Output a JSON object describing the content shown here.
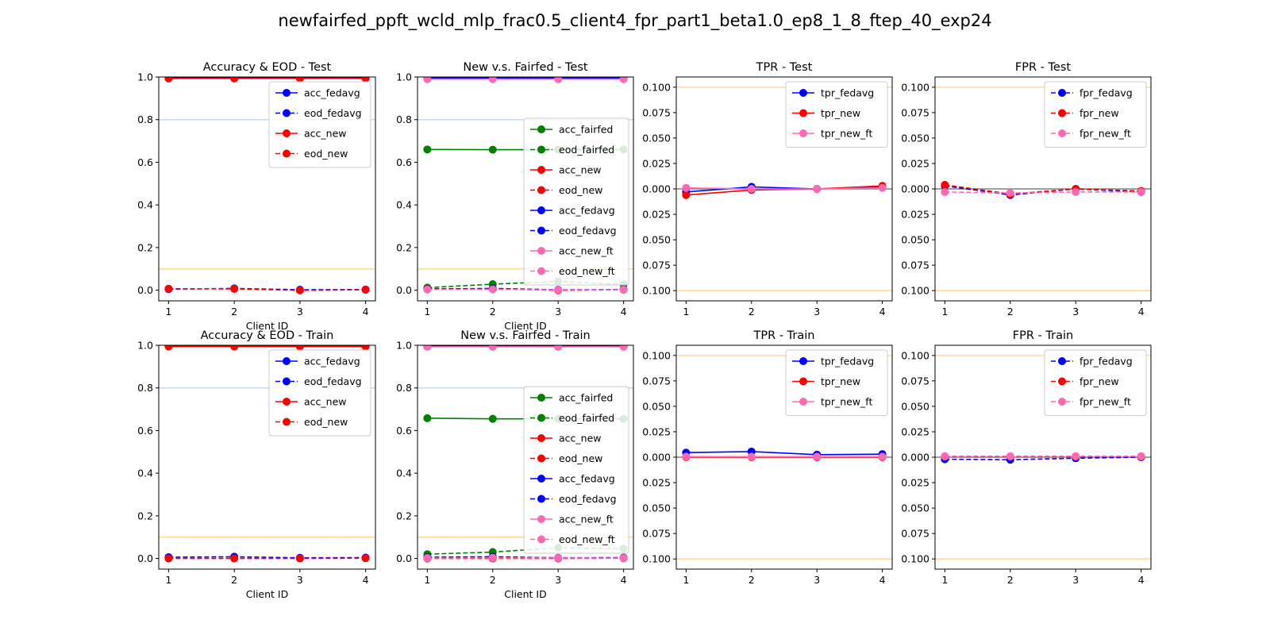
{
  "figure": {
    "suptitle": "newfairfed_ppft_wcld_mlp_frac0.5_client4_fpr_part1_beta1.0_ep8_1_8_ftep_40_exp24"
  },
  "colors": {
    "fedavg": "#0000ff",
    "new": "#ff0000",
    "fairfed": "#008000",
    "new_ft": "#ff69b4",
    "hline_blue": "#c6d9f0",
    "hline_orange": "#ffd89a",
    "hline_gray": "#808080"
  },
  "chart_data": [
    {
      "type": "line",
      "title": "Accuracy & EOD - Test",
      "xlabel": "Client ID",
      "ylabel": "",
      "x": [
        1,
        2,
        3,
        4
      ],
      "ylim": [
        -0.05,
        1.0
      ],
      "yticks": [
        "0.0",
        "0.2",
        "0.4",
        "0.6",
        "0.8",
        "1.0"
      ],
      "ytick_values": [
        0.0,
        0.2,
        0.4,
        0.6,
        0.8,
        1.0
      ],
      "hlines": [
        {
          "y": 0.8,
          "color": "hline_blue"
        },
        {
          "y": 0.1,
          "color": "hline_orange"
        }
      ],
      "legend_position": "upper-right",
      "series": [
        {
          "name": "acc_fedavg",
          "color": "fedavg",
          "dash": false,
          "values": [
            0.995,
            0.995,
            0.995,
            0.995
          ]
        },
        {
          "name": "eod_fedavg",
          "color": "fedavg",
          "dash": true,
          "values": [
            0.005,
            0.008,
            0.002,
            0.003
          ]
        },
        {
          "name": "acc_new",
          "color": "new",
          "dash": false,
          "values": [
            0.993,
            0.993,
            0.993,
            0.993
          ]
        },
        {
          "name": "eod_new",
          "color": "new",
          "dash": true,
          "values": [
            0.007,
            0.006,
            -0.001,
            0.002
          ]
        }
      ]
    },
    {
      "type": "line",
      "title": "New v.s. Fairfed - Test",
      "xlabel": "Client ID",
      "ylabel": "",
      "x": [
        1,
        2,
        3,
        4
      ],
      "ylim": [
        -0.05,
        1.0
      ],
      "yticks": [
        "0.0",
        "0.2",
        "0.4",
        "0.6",
        "0.8",
        "1.0"
      ],
      "ytick_values": [
        0.0,
        0.2,
        0.4,
        0.6,
        0.8,
        1.0
      ],
      "hlines": [
        {
          "y": 0.8,
          "color": "hline_blue"
        },
        {
          "y": 0.1,
          "color": "hline_orange"
        }
      ],
      "legend_position": "center-right",
      "series": [
        {
          "name": "acc_fairfed",
          "color": "fairfed",
          "dash": false,
          "values": [
            0.66,
            0.659,
            0.659,
            0.66
          ]
        },
        {
          "name": "eod_fairfed",
          "color": "fairfed",
          "dash": true,
          "values": [
            0.012,
            0.028,
            0.041,
            0.027
          ]
        },
        {
          "name": "acc_new",
          "color": "new",
          "dash": false,
          "values": [
            0.993,
            0.993,
            0.993,
            0.993
          ]
        },
        {
          "name": "eod_new",
          "color": "new",
          "dash": true,
          "values": [
            0.007,
            0.006,
            -0.001,
            0.002
          ]
        },
        {
          "name": "acc_fedavg",
          "color": "fedavg",
          "dash": false,
          "values": [
            0.995,
            0.995,
            0.995,
            0.995
          ]
        },
        {
          "name": "eod_fedavg",
          "color": "fedavg",
          "dash": true,
          "values": [
            0.005,
            0.008,
            0.002,
            0.003
          ]
        },
        {
          "name": "acc_new_ft",
          "color": "new_ft",
          "dash": false,
          "values": [
            0.99,
            0.99,
            0.99,
            0.99
          ]
        },
        {
          "name": "eod_new_ft",
          "color": "new_ft",
          "dash": true,
          "values": [
            0.003,
            0.004,
            0.001,
            0.002
          ]
        }
      ]
    },
    {
      "type": "line",
      "title": "TPR - Test",
      "xlabel": "",
      "ylabel": "",
      "x": [
        1,
        2,
        3,
        4
      ],
      "ylim": [
        -0.11,
        0.11
      ],
      "yticks": [
        "0.100",
        "0.075",
        "0.050",
        "0.025",
        "0.000",
        "0.025",
        "0.050",
        "0.075",
        "0.100"
      ],
      "ytick_values": [
        0.1,
        0.075,
        0.05,
        0.025,
        0.0,
        -0.025,
        -0.05,
        -0.075,
        -0.1
      ],
      "hlines": [
        {
          "y": 0.1,
          "color": "hline_orange"
        },
        {
          "y": -0.1,
          "color": "hline_orange"
        },
        {
          "y": 0.0,
          "color": "hline_gray"
        }
      ],
      "legend_position": "upper-right",
      "series": [
        {
          "name": "tpr_fedavg",
          "color": "fedavg",
          "dash": false,
          "values": [
            -0.003,
            0.002,
            0.0,
            0.002
          ]
        },
        {
          "name": "tpr_new",
          "color": "new",
          "dash": false,
          "values": [
            -0.006,
            -0.001,
            0.0,
            0.003
          ]
        },
        {
          "name": "tpr_new_ft",
          "color": "new_ft",
          "dash": false,
          "values": [
            0.001,
            0.0,
            0.0,
            0.001
          ]
        }
      ]
    },
    {
      "type": "line",
      "title": "FPR - Test",
      "xlabel": "",
      "ylabel": "",
      "x": [
        1,
        2,
        3,
        4
      ],
      "ylim": [
        -0.11,
        0.11
      ],
      "yticks": [
        "0.100",
        "0.075",
        "0.050",
        "0.025",
        "0.000",
        "0.025",
        "0.050",
        "0.075",
        "0.100"
      ],
      "ytick_values": [
        0.1,
        0.075,
        0.05,
        0.025,
        0.0,
        -0.025,
        -0.05,
        -0.075,
        -0.1
      ],
      "hlines": [
        {
          "y": 0.1,
          "color": "hline_orange"
        },
        {
          "y": -0.1,
          "color": "hline_orange"
        },
        {
          "y": 0.0,
          "color": "hline_gray"
        }
      ],
      "legend_position": "upper-right",
      "series": [
        {
          "name": "fpr_fedavg",
          "color": "fedavg",
          "dash": true,
          "values": [
            0.003,
            -0.006,
            0.0,
            -0.003
          ]
        },
        {
          "name": "fpr_new",
          "color": "new",
          "dash": true,
          "values": [
            0.004,
            -0.005,
            0.0,
            -0.002
          ]
        },
        {
          "name": "fpr_new_ft",
          "color": "new_ft",
          "dash": true,
          "values": [
            -0.003,
            -0.004,
            -0.003,
            -0.003
          ]
        }
      ]
    },
    {
      "type": "line",
      "title": "Accuracy & EOD - Train",
      "xlabel": "Client ID",
      "ylabel": "",
      "x": [
        1,
        2,
        3,
        4
      ],
      "ylim": [
        -0.05,
        1.0
      ],
      "yticks": [
        "0.0",
        "0.2",
        "0.4",
        "0.6",
        "0.8",
        "1.0"
      ],
      "ytick_values": [
        0.0,
        0.2,
        0.4,
        0.6,
        0.8,
        1.0
      ],
      "hlines": [
        {
          "y": 0.8,
          "color": "hline_blue"
        },
        {
          "y": 0.1,
          "color": "hline_orange"
        }
      ],
      "legend_position": "upper-right",
      "series": [
        {
          "name": "acc_fedavg",
          "color": "fedavg",
          "dash": false,
          "values": [
            0.996,
            0.996,
            0.996,
            0.996
          ]
        },
        {
          "name": "eod_fedavg",
          "color": "fedavg",
          "dash": true,
          "values": [
            0.006,
            0.008,
            0.003,
            0.004
          ]
        },
        {
          "name": "acc_new",
          "color": "new",
          "dash": false,
          "values": [
            0.994,
            0.994,
            0.994,
            0.994
          ]
        },
        {
          "name": "eod_new",
          "color": "new",
          "dash": true,
          "values": [
            0.0,
            0.0,
            0.0,
            0.001
          ]
        }
      ]
    },
    {
      "type": "line",
      "title": "New v.s. Fairfed - Train",
      "xlabel": "Client ID",
      "ylabel": "",
      "x": [
        1,
        2,
        3,
        4
      ],
      "ylim": [
        -0.05,
        1.0
      ],
      "yticks": [
        "0.0",
        "0.2",
        "0.4",
        "0.6",
        "0.8",
        "1.0"
      ],
      "ytick_values": [
        0.0,
        0.2,
        0.4,
        0.6,
        0.8,
        1.0
      ],
      "hlines": [
        {
          "y": 0.8,
          "color": "hline_blue"
        },
        {
          "y": 0.1,
          "color": "hline_orange"
        }
      ],
      "legend_position": "center-right",
      "series": [
        {
          "name": "acc_fairfed",
          "color": "fairfed",
          "dash": false,
          "values": [
            0.658,
            0.655,
            0.655,
            0.655
          ]
        },
        {
          "name": "eod_fairfed",
          "color": "fairfed",
          "dash": true,
          "values": [
            0.02,
            0.03,
            0.05,
            0.046
          ]
        },
        {
          "name": "acc_new",
          "color": "new",
          "dash": false,
          "values": [
            0.994,
            0.994,
            0.994,
            0.994
          ]
        },
        {
          "name": "eod_new",
          "color": "new",
          "dash": true,
          "values": [
            0.0,
            0.0,
            0.0,
            0.001
          ]
        },
        {
          "name": "acc_fedavg",
          "color": "fedavg",
          "dash": false,
          "values": [
            0.996,
            0.996,
            0.996,
            0.996
          ]
        },
        {
          "name": "eod_fedavg",
          "color": "fedavg",
          "dash": true,
          "values": [
            0.006,
            0.008,
            0.003,
            0.004
          ]
        },
        {
          "name": "acc_new_ft",
          "color": "new_ft",
          "dash": false,
          "values": [
            0.993,
            0.993,
            0.993,
            0.993
          ]
        },
        {
          "name": "eod_new_ft",
          "color": "new_ft",
          "dash": true,
          "values": [
            0.002,
            0.003,
            0.002,
            0.002
          ]
        }
      ]
    },
    {
      "type": "line",
      "title": "TPR - Train",
      "xlabel": "",
      "ylabel": "",
      "x": [
        1,
        2,
        3,
        4
      ],
      "ylim": [
        -0.11,
        0.11
      ],
      "yticks": [
        "0.100",
        "0.075",
        "0.050",
        "0.025",
        "0.000",
        "0.025",
        "0.050",
        "0.075",
        "0.100"
      ],
      "ytick_values": [
        0.1,
        0.075,
        0.05,
        0.025,
        0.0,
        -0.025,
        -0.05,
        -0.075,
        -0.1
      ],
      "hlines": [
        {
          "y": 0.1,
          "color": "hline_orange"
        },
        {
          "y": -0.1,
          "color": "hline_orange"
        },
        {
          "y": 0.0,
          "color": "hline_gray"
        }
      ],
      "legend_position": "upper-right",
      "series": [
        {
          "name": "tpr_fedavg",
          "color": "fedavg",
          "dash": false,
          "values": [
            0.0045,
            0.0055,
            0.0025,
            0.003
          ]
        },
        {
          "name": "tpr_new",
          "color": "new",
          "dash": false,
          "values": [
            0.0,
            0.0,
            0.0,
            0.0
          ]
        },
        {
          "name": "tpr_new_ft",
          "color": "new_ft",
          "dash": false,
          "values": [
            0.0005,
            0.0005,
            0.0005,
            0.0005
          ]
        }
      ]
    },
    {
      "type": "line",
      "title": "FPR - Train",
      "xlabel": "",
      "ylabel": "",
      "x": [
        1,
        2,
        3,
        4
      ],
      "ylim": [
        -0.11,
        0.11
      ],
      "yticks": [
        "0.100",
        "0.075",
        "0.050",
        "0.025",
        "0.000",
        "0.025",
        "0.050",
        "0.075",
        "0.100"
      ],
      "ytick_values": [
        0.1,
        0.075,
        0.05,
        0.025,
        0.0,
        -0.025,
        -0.05,
        -0.075,
        -0.1
      ],
      "hlines": [
        {
          "y": 0.1,
          "color": "hline_orange"
        },
        {
          "y": -0.1,
          "color": "hline_orange"
        },
        {
          "y": 0.0,
          "color": "hline_gray"
        }
      ],
      "legend_position": "upper-right",
      "series": [
        {
          "name": "fpr_fedavg",
          "color": "fedavg",
          "dash": true,
          "values": [
            -0.002,
            -0.0025,
            -0.001,
            0.0
          ]
        },
        {
          "name": "fpr_new",
          "color": "new",
          "dash": true,
          "values": [
            0.0005,
            0.0005,
            0.0005,
            0.0005
          ]
        },
        {
          "name": "fpr_new_ft",
          "color": "new_ft",
          "dash": true,
          "values": [
            0.001,
            0.001,
            0.001,
            0.001
          ]
        }
      ]
    }
  ]
}
